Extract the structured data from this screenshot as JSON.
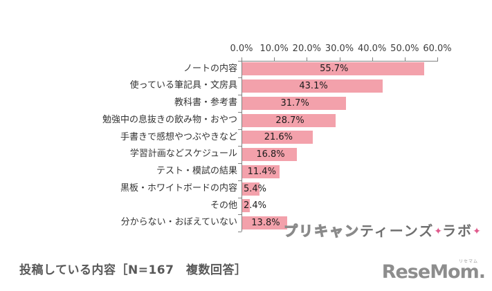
{
  "chart_data": {
    "type": "bar",
    "orientation": "horizontal",
    "categories": [
      "ノートの内容",
      "使っている筆記具・文房具",
      "教科書・参考書",
      "勉強中の息抜きの飲み物・おやつ",
      "手書きで感想やつぶやきなど",
      "学習計画などスケジュール",
      "テスト・模試の結果",
      "黒板・ホワイトボードの内容",
      "その他",
      "分からない・おぼえていない"
    ],
    "values": [
      55.7,
      43.1,
      31.7,
      28.7,
      21.6,
      16.8,
      11.4,
      5.4,
      2.4,
      13.8
    ],
    "value_labels": [
      "55.7%",
      "43.1%",
      "31.7%",
      "28.7%",
      "21.6%",
      "16.8%",
      "11.4%",
      "5.4%",
      "2.4%",
      "13.8%"
    ],
    "x_tick_labels": [
      "0.0%",
      "10.0%",
      "20.0%",
      "30.0%",
      "40.0%",
      "50.0%",
      "60.0%"
    ],
    "xlim": [
      0,
      60
    ],
    "grid": false,
    "legend": false,
    "bar_color": "#f3a1ab",
    "axis_color": "#808080",
    "label_color": "#333333"
  },
  "caption": "投稿している内容［N=167　複数回答］",
  "watermark": {
    "part1": "プリキャン",
    "part2": "ティーンズ",
    "star": "✦",
    "part3": "ラボ",
    "pink": "#e05a8c",
    "gray": "#6f6f6f"
  },
  "logo": {
    "text": "ReseMom.",
    "ruby": "リセマム",
    "color": "#8d8d8d"
  }
}
